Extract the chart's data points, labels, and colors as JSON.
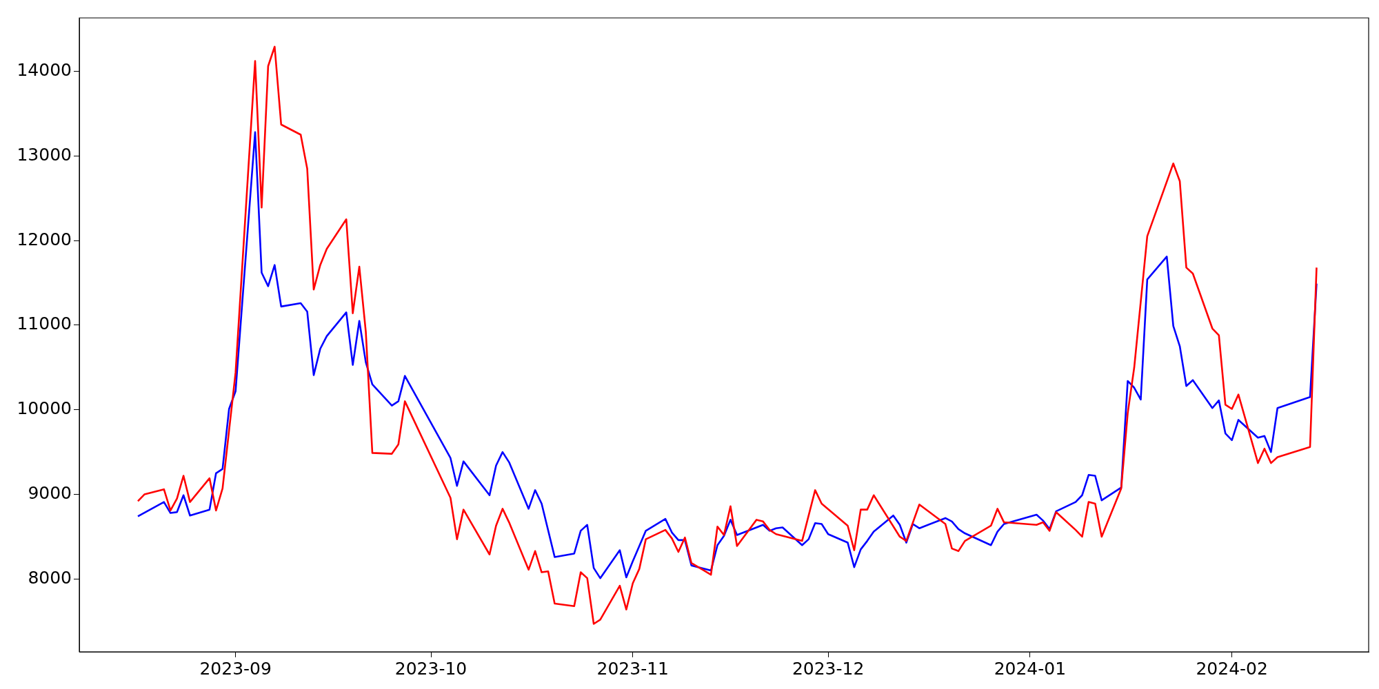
{
  "chart_data": {
    "type": "line",
    "xlim": [
      "2023-08-08",
      "2024-02-22"
    ],
    "xticks": [
      {
        "value": "2023-09-01",
        "label": "2023-09"
      },
      {
        "value": "2023-10-01",
        "label": "2023-10"
      },
      {
        "value": "2023-11-01",
        "label": "2023-11"
      },
      {
        "value": "2023-12-01",
        "label": "2023-12"
      },
      {
        "value": "2024-01-01",
        "label": "2024-01"
      },
      {
        "value": "2024-02-01",
        "label": "2024-02"
      }
    ],
    "ylim": [
      7140,
      14630
    ],
    "yticks": [
      8000,
      9000,
      10000,
      11000,
      12000,
      13000,
      14000
    ],
    "series": [
      {
        "color": "#ff0000",
        "x": [
          "2023-08-17",
          "2023-08-18",
          "2023-08-21",
          "2023-08-22",
          "2023-08-23",
          "2023-08-24",
          "2023-08-25",
          "2023-08-28",
          "2023-08-29",
          "2023-08-30",
          "2023-09-01",
          "2023-09-04",
          "2023-09-05",
          "2023-09-06",
          "2023-09-07",
          "2023-09-08",
          "2023-09-11",
          "2023-09-12",
          "2023-09-13",
          "2023-09-14",
          "2023-09-15",
          "2023-09-18",
          "2023-09-19",
          "2023-09-20",
          "2023-09-21",
          "2023-09-22",
          "2023-09-25",
          "2023-09-26",
          "2023-09-27",
          "2023-10-04",
          "2023-10-05",
          "2023-10-06",
          "2023-10-10",
          "2023-10-11",
          "2023-10-12",
          "2023-10-13",
          "2023-10-16",
          "2023-10-17",
          "2023-10-18",
          "2023-10-19",
          "2023-10-20",
          "2023-10-23",
          "2023-10-24",
          "2023-10-25",
          "2023-10-26",
          "2023-10-27",
          "2023-10-30",
          "2023-10-31",
          "2023-11-01",
          "2023-11-02",
          "2023-11-03",
          "2023-11-06",
          "2023-11-07",
          "2023-11-08",
          "2023-11-09",
          "2023-11-10",
          "2023-11-13",
          "2023-11-14",
          "2023-11-15",
          "2023-11-16",
          "2023-11-17",
          "2023-11-20",
          "2023-11-21",
          "2023-11-22",
          "2023-11-23",
          "2023-11-27",
          "2023-11-29",
          "2023-11-30",
          "2023-12-04",
          "2023-12-05",
          "2023-12-06",
          "2023-12-07",
          "2023-12-08",
          "2023-12-12",
          "2023-12-13",
          "2023-12-15",
          "2023-12-19",
          "2023-12-20",
          "2023-12-21",
          "2023-12-22",
          "2023-12-26",
          "2023-12-27",
          "2023-12-28",
          "2024-01-02",
          "2024-01-03",
          "2024-01-04",
          "2024-01-05",
          "2024-01-08",
          "2024-01-09",
          "2024-01-10",
          "2024-01-11",
          "2024-01-12",
          "2024-01-15",
          "2024-01-16",
          "2024-01-17",
          "2024-01-19",
          "2024-01-23",
          "2024-01-24",
          "2024-01-25",
          "2024-01-26",
          "2024-01-29",
          "2024-01-30",
          "2024-01-31",
          "2024-02-01",
          "2024-02-02",
          "2024-02-05",
          "2024-02-06",
          "2024-02-07",
          "2024-02-08",
          "2024-02-13",
          "2024-02-14"
        ],
        "values": [
          8920,
          9000,
          9060,
          8810,
          8950,
          9220,
          8910,
          9190,
          8810,
          9070,
          10440,
          14120,
          12390,
          14060,
          14290,
          13370,
          13250,
          12850,
          11420,
          11710,
          11900,
          12250,
          11140,
          11690,
          10920,
          9490,
          9480,
          9590,
          10100,
          8960,
          8470,
          8820,
          8290,
          8630,
          8830,
          8670,
          8110,
          8330,
          8080,
          8090,
          7710,
          7680,
          8080,
          8010,
          7470,
          7520,
          7920,
          7640,
          7950,
          8120,
          8470,
          8580,
          8480,
          8320,
          8490,
          8190,
          8050,
          8620,
          8520,
          8860,
          8390,
          8700,
          8680,
          8580,
          8530,
          8450,
          9050,
          8890,
          8630,
          8340,
          8820,
          8820,
          8990,
          8500,
          8450,
          8880,
          8650,
          8360,
          8330,
          8450,
          8630,
          8830,
          8670,
          8640,
          8670,
          8570,
          8790,
          8580,
          8500,
          8910,
          8890,
          8500,
          9070,
          9960,
          10500,
          12050,
          12910,
          12700,
          11680,
          11610,
          10960,
          10880,
          10060,
          10010,
          10180,
          9370,
          9540,
          9370,
          9440,
          9560,
          11680
        ]
      },
      {
        "color": "#0000ff",
        "x": [
          "2023-08-17",
          "2023-08-21",
          "2023-08-22",
          "2023-08-23",
          "2023-08-24",
          "2023-08-25",
          "2023-08-28",
          "2023-08-29",
          "2023-08-30",
          "2023-08-31",
          "2023-09-01",
          "2023-09-04",
          "2023-09-05",
          "2023-09-06",
          "2023-09-07",
          "2023-09-08",
          "2023-09-11",
          "2023-09-12",
          "2023-09-13",
          "2023-09-14",
          "2023-09-15",
          "2023-09-18",
          "2023-09-19",
          "2023-09-20",
          "2023-09-21",
          "2023-09-22",
          "2023-09-25",
          "2023-09-26",
          "2023-09-27",
          "2023-10-04",
          "2023-10-05",
          "2023-10-06",
          "2023-10-10",
          "2023-10-11",
          "2023-10-12",
          "2023-10-13",
          "2023-10-16",
          "2023-10-17",
          "2023-10-18",
          "2023-10-20",
          "2023-10-23",
          "2023-10-24",
          "2023-10-25",
          "2023-10-26",
          "2023-10-27",
          "2023-10-30",
          "2023-10-31",
          "2023-11-01",
          "2023-11-02",
          "2023-11-03",
          "2023-11-06",
          "2023-11-07",
          "2023-11-08",
          "2023-11-09",
          "2023-11-10",
          "2023-11-13",
          "2023-11-14",
          "2023-11-15",
          "2023-11-16",
          "2023-11-17",
          "2023-11-20",
          "2023-11-21",
          "2023-11-22",
          "2023-11-23",
          "2023-11-24",
          "2023-11-27",
          "2023-11-28",
          "2023-11-29",
          "2023-11-30",
          "2023-12-01",
          "2023-12-04",
          "2023-12-05",
          "2023-12-06",
          "2023-12-07",
          "2023-12-08",
          "2023-12-11",
          "2023-12-12",
          "2023-12-13",
          "2023-12-14",
          "2023-12-15",
          "2023-12-19",
          "2023-12-20",
          "2023-12-21",
          "2023-12-22",
          "2023-12-26",
          "2023-12-27",
          "2023-12-28",
          "2024-01-02",
          "2024-01-03",
          "2024-01-04",
          "2024-01-05",
          "2024-01-08",
          "2024-01-09",
          "2024-01-10",
          "2024-01-11",
          "2024-01-12",
          "2024-01-15",
          "2024-01-16",
          "2024-01-17",
          "2024-01-18",
          "2024-01-19",
          "2024-01-22",
          "2024-01-23",
          "2024-01-24",
          "2024-01-25",
          "2024-01-26",
          "2024-01-29",
          "2024-01-30",
          "2024-01-31",
          "2024-02-01",
          "2024-02-02",
          "2024-02-05",
          "2024-02-06",
          "2024-02-07",
          "2024-02-08",
          "2024-02-13",
          "2024-02-14"
        ],
        "values": [
          8740,
          8910,
          8780,
          8790,
          8990,
          8750,
          8820,
          9250,
          9300,
          10010,
          10220,
          13280,
          11620,
          11460,
          11710,
          11220,
          11260,
          11160,
          10410,
          10720,
          10870,
          11150,
          10530,
          11050,
          10560,
          10300,
          10050,
          10100,
          10400,
          9430,
          9100,
          9390,
          8990,
          9340,
          9500,
          9380,
          8830,
          9050,
          8890,
          8260,
          8300,
          8570,
          8640,
          8130,
          8010,
          8340,
          8020,
          8210,
          8390,
          8570,
          8710,
          8550,
          8460,
          8460,
          8160,
          8100,
          8400,
          8510,
          8700,
          8520,
          8610,
          8640,
          8570,
          8600,
          8610,
          8400,
          8470,
          8660,
          8650,
          8530,
          8430,
          8140,
          8350,
          8450,
          8560,
          8750,
          8640,
          8430,
          8650,
          8600,
          8720,
          8680,
          8590,
          8540,
          8400,
          8560,
          8650,
          8760,
          8690,
          8590,
          8800,
          8910,
          8990,
          9230,
          9220,
          8930,
          9080,
          10340,
          10260,
          10120,
          11540,
          11810,
          10990,
          10750,
          10280,
          10350,
          10020,
          10110,
          9720,
          9640,
          9880,
          9670,
          9690,
          9500,
          10020,
          10150,
          11490
        ]
      }
    ]
  }
}
